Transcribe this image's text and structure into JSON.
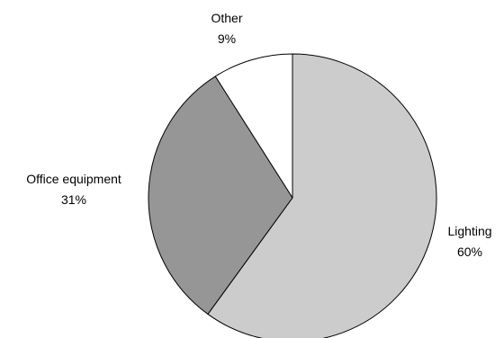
{
  "chart_data": {
    "type": "pie",
    "title": "",
    "slices": [
      {
        "label": "Lighting",
        "value": 60,
        "value_label": "60%",
        "color": "#cccccc"
      },
      {
        "label": "Office equipment",
        "value": 31,
        "value_label": "31%",
        "color": "#969696"
      },
      {
        "label": "Other",
        "value": 9,
        "value_label": "9%",
        "color": "#ffffff"
      }
    ],
    "start": "12 o'clock",
    "direction": "clockwise",
    "edge_color": "#000000",
    "legend": "none",
    "labels": "outside slices, category name above percentage"
  }
}
